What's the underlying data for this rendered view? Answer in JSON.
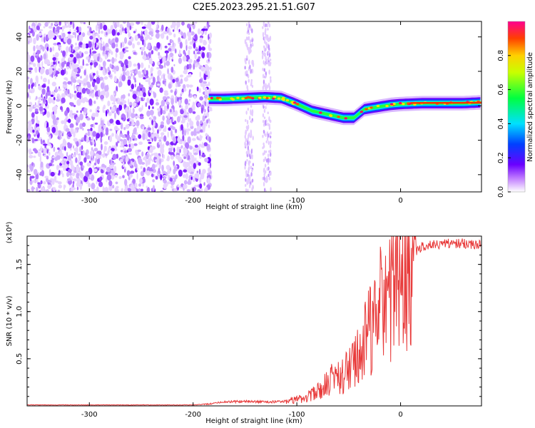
{
  "title": "C2E5.2023.295.21.51.G07",
  "chart_data": [
    {
      "type": "heatmap",
      "xlabel": "Height of straight line (km)",
      "ylabel": "Frequency (Hz)",
      "xlim": [
        -360,
        78
      ],
      "ylim": [
        -50,
        49
      ],
      "xticks": [
        -300,
        -200,
        -100,
        0
      ],
      "yticks": [
        -40,
        -20,
        0,
        20,
        40
      ],
      "colorbar": {
        "label": "Normalized spectral amplitude",
        "range": [
          0,
          1
        ],
        "ticks": [
          "0.0",
          "0.2",
          "0.4",
          "0.6",
          "0.8"
        ]
      },
      "features": {
        "noise_region_km": [
          -360,
          -183
        ],
        "faint_strips_km": [
          [
            -150,
            -142
          ],
          [
            -133,
            -125
          ]
        ],
        "signal_trace": {
          "x": [
            -185,
            -170,
            -150,
            -130,
            -115,
            -100,
            -85,
            -70,
            -55,
            -45,
            -35,
            -25,
            -10,
            0,
            20,
            40,
            60,
            78
          ],
          "y": [
            4,
            4,
            4.5,
            5,
            4.5,
            1,
            -3,
            -5,
            -7,
            -7,
            -2,
            -1,
            0.5,
            1,
            1.5,
            1.5,
            1.5,
            2
          ]
        }
      }
    },
    {
      "type": "line",
      "xlabel": "Height of straight line (km)",
      "ylabel": "SNR (10 * v/v)",
      "multiplier": "(x10⁴)",
      "xlim": [
        -360,
        78
      ],
      "ylim": [
        0,
        1.8
      ],
      "xticks": [
        -300,
        -200,
        -100,
        0
      ],
      "yticks": [
        "0.5",
        "1.0",
        "1.5"
      ],
      "series": [
        {
          "color": "#e83a3a",
          "envelope": {
            "x": [
              -360,
              -200,
              -185,
              -170,
              -150,
              -130,
              -110,
              -95,
              -80,
              -70,
              -60,
              -50,
              -40,
              -30,
              -20,
              -10,
              0,
              10,
              20,
              40,
              60,
              78
            ],
            "y": [
              0.01,
              0.01,
              0.02,
              0.04,
              0.05,
              0.04,
              0.05,
              0.08,
              0.16,
              0.28,
              0.33,
              0.38,
              0.55,
              0.85,
              1.1,
              1.25,
              1.45,
              1.6,
              1.7,
              1.74,
              1.74,
              1.72
            ]
          }
        }
      ]
    }
  ]
}
